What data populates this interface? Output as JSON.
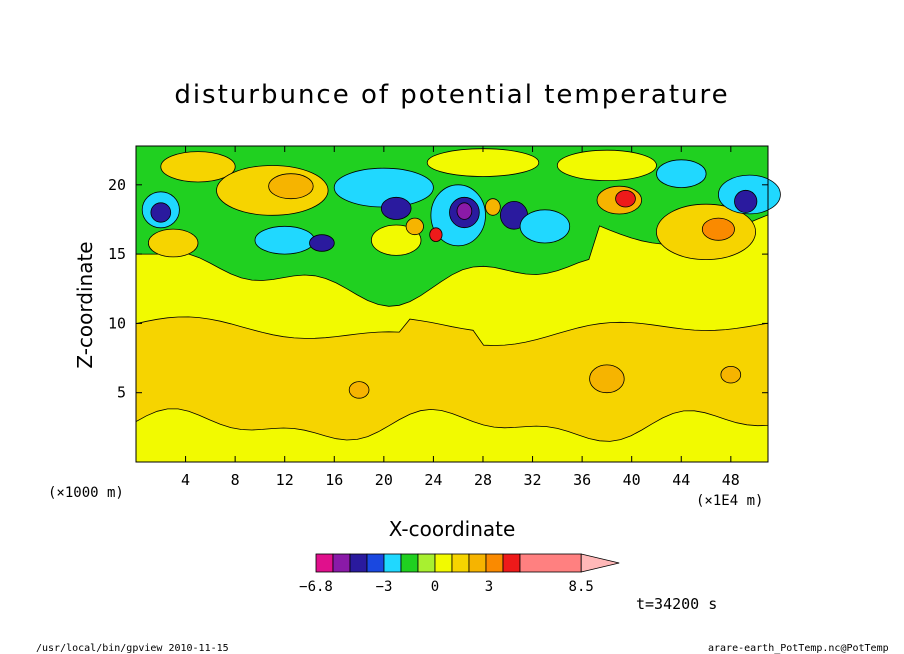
{
  "chart_data": {
    "type": "heatmap",
    "title": "disturbunce of potential temperature",
    "xlabel": "X-coordinate",
    "ylabel": "Z-coordinate",
    "x_unit_left": "(×1000 m)",
    "x_unit_right": "(×1E4 m)",
    "x_ticks": [
      4,
      8,
      12,
      16,
      20,
      24,
      28,
      32,
      36,
      40,
      44,
      48
    ],
    "y_ticks": [
      5,
      10,
      15,
      20
    ],
    "xlim": [
      0,
      51
    ],
    "ylim": [
      0,
      22.8
    ],
    "colorbar": {
      "colors": [
        "#e0108c",
        "#8a1aa8",
        "#2a1a9e",
        "#1a48e0",
        "#20d8ff",
        "#20d020",
        "#a8f030",
        "#f2fa00",
        "#f6d400",
        "#f6b400",
        "#fa8a00",
        "#ee1a1a",
        "#ff8080",
        "#ffb8b8"
      ],
      "labels": [
        {
          "text": "−6.8",
          "pos": 0
        },
        {
          "text": "−3",
          "pos": 3
        },
        {
          "text": "0",
          "pos": 5
        },
        {
          "text": "3",
          "pos": 7
        },
        {
          "text": "8.5",
          "pos": 11
        }
      ]
    },
    "time_label": "t=34200 s",
    "footer_left": "/usr/local/bin/gpview  2010-11-15",
    "footer_right": "arare-earth_PotTemp.nc@PotTemp"
  }
}
